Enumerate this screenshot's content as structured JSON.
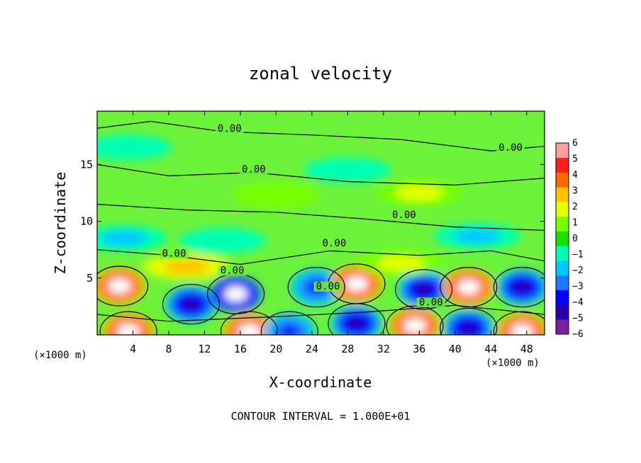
{
  "chart_data": {
    "type": "heatmap",
    "title": "zonal velocity",
    "xlabel": "X-coordinate",
    "ylabel": "Z-coordinate",
    "x_unit_left": "(×1000 m)",
    "x_unit_right": "(×1000 m)",
    "xlim": [
      0,
      50
    ],
    "ylim": [
      0,
      19.7
    ],
    "x_ticks": [
      4,
      8,
      12,
      16,
      20,
      24,
      28,
      32,
      36,
      40,
      44,
      48
    ],
    "y_ticks": [
      5,
      10,
      15
    ],
    "colorbar": {
      "min": -6,
      "max": 6,
      "ticks": [
        6,
        5,
        4,
        3,
        2,
        1,
        0,
        -1,
        -2,
        -3,
        -4,
        -5,
        -6
      ],
      "colors": [
        "#7b1fa2",
        "#2a00aa",
        "#0000ff",
        "#1e78ff",
        "#00c8ff",
        "#00ffb4",
        "#18e000",
        "#78ff00",
        "#e8ff00",
        "#ffc400",
        "#ff6a00",
        "#ff1e1e",
        "#ffa0a0"
      ]
    },
    "contour_labels": [
      {
        "text": "0.00",
        "x": 14.8,
        "z": 17.9
      },
      {
        "text": "0.00",
        "x": 17.5,
        "z": 14.3
      },
      {
        "text": "0.00",
        "x": 46.2,
        "z": 16.2
      },
      {
        "text": "0.00",
        "x": 34.3,
        "z": 10.3
      },
      {
        "text": "0.00",
        "x": 26.5,
        "z": 7.8
      },
      {
        "text": "0.00",
        "x": 8.6,
        "z": 6.9
      },
      {
        "text": "0.00",
        "x": 15.1,
        "z": 5.4
      },
      {
        "text": "0.00",
        "x": 25.8,
        "z": 4.0
      },
      {
        "text": "0.00",
        "x": 37.3,
        "z": 2.6
      }
    ],
    "anomalies": [
      {
        "x": 2.5,
        "z": 4.3,
        "v": 6
      },
      {
        "x": 3.5,
        "z": 0.3,
        "v": 6
      },
      {
        "x": 10.5,
        "z": 2.7,
        "v": -5
      },
      {
        "x": 15.5,
        "z": 3.6,
        "v": -6
      },
      {
        "x": 17.0,
        "z": 0.3,
        "v": 6
      },
      {
        "x": 21.5,
        "z": 0.3,
        "v": -4
      },
      {
        "x": 24.5,
        "z": 4.2,
        "v": -4
      },
      {
        "x": 29.0,
        "z": 4.5,
        "v": 6
      },
      {
        "x": 29.0,
        "z": 1.0,
        "v": -5
      },
      {
        "x": 36.5,
        "z": 4.0,
        "v": -5
      },
      {
        "x": 35.5,
        "z": 0.8,
        "v": 6
      },
      {
        "x": 41.5,
        "z": 4.2,
        "v": 6
      },
      {
        "x": 41.5,
        "z": 0.6,
        "v": -5
      },
      {
        "x": 47.5,
        "z": 4.2,
        "v": -5
      },
      {
        "x": 47.5,
        "z": 0.3,
        "v": 6
      },
      {
        "x": 20.0,
        "z": 12.3,
        "v": 1.2
      },
      {
        "x": 36.0,
        "z": 12.5,
        "v": 1.5
      },
      {
        "x": 3.5,
        "z": 16.5,
        "v": -1.3
      },
      {
        "x": 28.0,
        "z": 14.5,
        "v": -1.0
      },
      {
        "x": 3.0,
        "z": 8.5,
        "v": -1.8
      },
      {
        "x": 42.5,
        "z": 8.7,
        "v": -2.0
      },
      {
        "x": 14.0,
        "z": 8.3,
        "v": -1.5
      },
      {
        "x": 10.0,
        "z": 6.0,
        "v": 2.5
      },
      {
        "x": 34.0,
        "z": 6.3,
        "v": 2.2
      }
    ]
  },
  "footer": {
    "contour_interval": "CONTOUR INTERVAL = 1.000E+01"
  }
}
